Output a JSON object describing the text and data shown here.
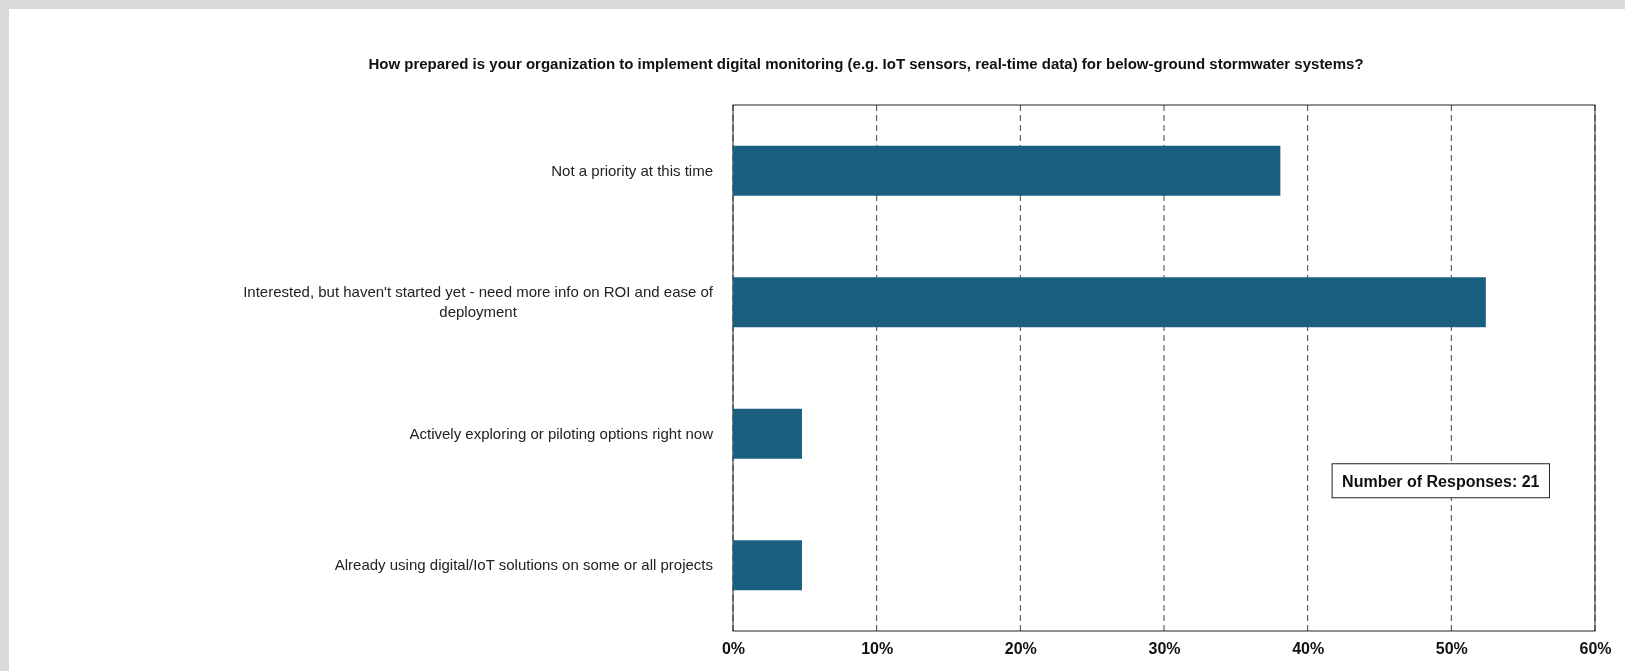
{
  "chart_data": {
    "type": "bar",
    "orientation": "horizontal",
    "title": "How prepared is your organization to implement digital monitoring (e.g. IoT sensors, real-time data) for below-ground stormwater systems?",
    "categories": [
      "Not a priority at this time",
      "Interested, but haven't started yet - need more info on ROI and ease of deployment",
      "Actively exploring or piloting options right now",
      "Already using digital/IoT solutions on some or all projects"
    ],
    "values": [
      38.1,
      52.4,
      4.8,
      4.8
    ],
    "color": "#1a5f80",
    "xlim": [
      0,
      60
    ],
    "xticks": [
      {
        "value": 0,
        "label": "0%"
      },
      {
        "value": 10,
        "label": "10%"
      },
      {
        "value": 20,
        "label": "20%"
      },
      {
        "value": 30,
        "label": "30%"
      },
      {
        "value": 40,
        "label": "40%"
      },
      {
        "value": 50,
        "label": "50%"
      },
      {
        "value": 60,
        "label": "60%"
      }
    ],
    "grid": "x",
    "annotations": [
      "Number of Responses: 21"
    ]
  }
}
